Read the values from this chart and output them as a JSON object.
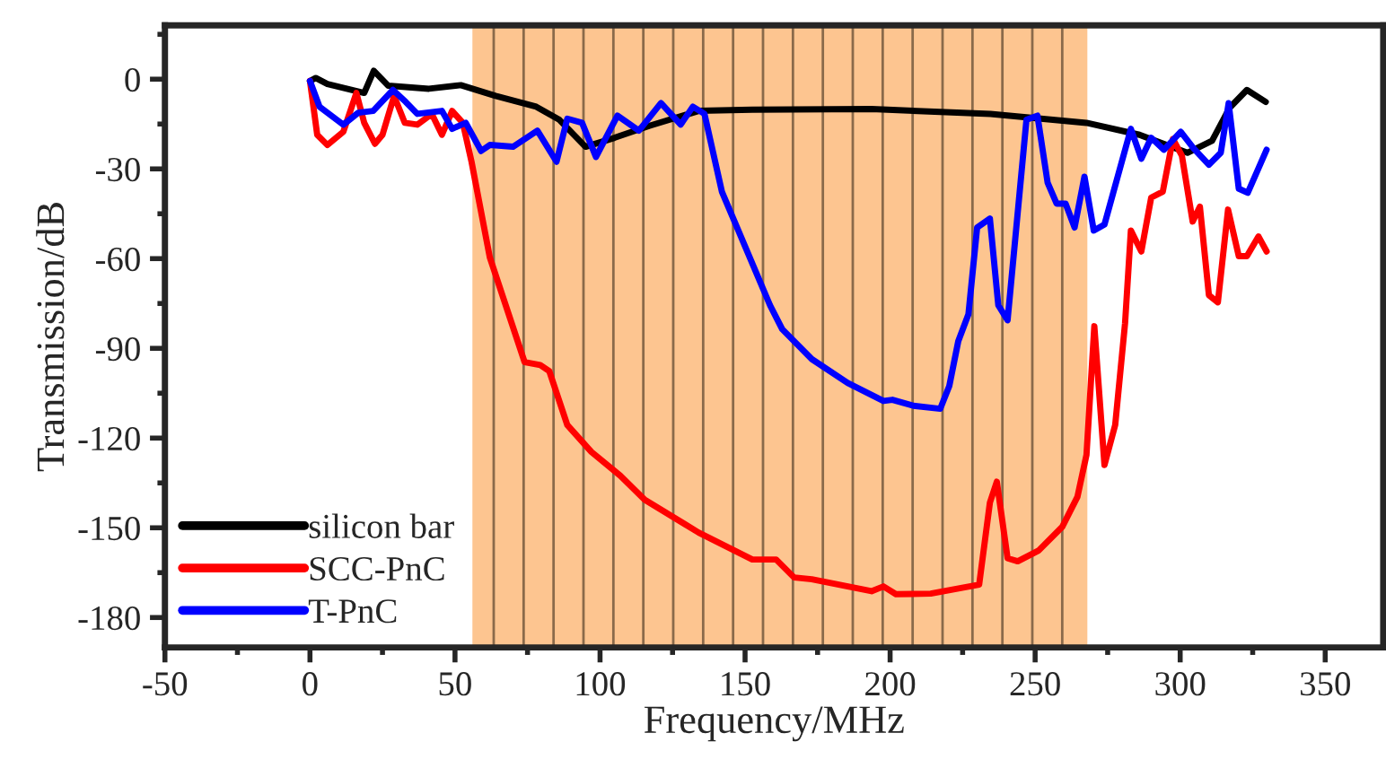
{
  "chart_data": {
    "type": "line",
    "xlabel": "Frequency/MHz",
    "ylabel": "Transmission/dB",
    "xlim": [
      -50,
      370
    ],
    "ylim": [
      -190,
      18
    ],
    "xticks": [
      -50,
      0,
      50,
      100,
      150,
      200,
      250,
      300,
      350
    ],
    "yticks": [
      -180,
      -150,
      -120,
      -90,
      -60,
      -30,
      0
    ],
    "grid": false,
    "legend": "bottom left",
    "line_style": "solid",
    "marker": "none",
    "bands": [
      {
        "axis": "x",
        "from": 56,
        "to": 268,
        "color": "#fdc590"
      }
    ],
    "series": [
      {
        "name": "silicon bar",
        "color": "#000000",
        "x": [
          0,
          2,
          6,
          18.7,
          22,
          27,
          41,
          52,
          64,
          78,
          86,
          95,
          105,
          117,
          134,
          152.5,
          193.6,
          234.6,
          267.7,
          286,
          302.5,
          311,
          317,
          323,
          329.5
        ],
        "values": [
          -0.6,
          0.4,
          -1.6,
          -4.6,
          2.8,
          -2.2,
          -3.2,
          -2,
          -5.6,
          -9.2,
          -13.6,
          -22.6,
          -19.6,
          -15.6,
          -10.6,
          -10.2,
          -10,
          -11.6,
          -14.6,
          -18.6,
          -24.6,
          -20.6,
          -9.6,
          -3.6,
          -7.6
        ]
      },
      {
        "name": "SCC-PnC",
        "color": "#ff0000",
        "x": [
          0,
          2.5,
          6,
          11.5,
          16,
          18.7,
          22.4,
          25,
          29,
          32.7,
          37,
          42,
          45.5,
          49,
          52.7,
          55.7,
          62,
          74,
          79.4,
          82.5,
          88.7,
          97,
          107,
          115.4,
          134,
          152.5,
          160.7,
          166.9,
          173,
          193.6,
          197.7,
          202,
          214,
          230.7,
          234.4,
          236.8,
          240.5,
          244,
          251.2,
          259.4,
          264.6,
          267.7,
          270.4,
          273.9,
          277.6,
          281,
          283,
          286.6,
          290,
          294,
          297.5,
          300.6,
          304.3,
          306.8,
          309.9,
          313,
          316.5,
          320.2,
          323,
          327,
          329.8
        ],
        "values": [
          -0.6,
          -18.6,
          -22,
          -17.6,
          -4.6,
          -14.6,
          -21.6,
          -18.6,
          -5.6,
          -14.6,
          -15.2,
          -11.6,
          -18.6,
          -10.6,
          -14.6,
          -27.6,
          -59.6,
          -94.6,
          -95.6,
          -97.6,
          -115.6,
          -124.6,
          -132.6,
          -140.6,
          -151.6,
          -160.6,
          -160.6,
          -166.6,
          -167.2,
          -171.2,
          -169.6,
          -172.2,
          -172,
          -169,
          -141.6,
          -134.6,
          -160.2,
          -161.2,
          -157.6,
          -149.6,
          -139.6,
          -125.6,
          -82.6,
          -129,
          -115.6,
          -81.6,
          -50.6,
          -57.6,
          -39.6,
          -37.6,
          -20,
          -25.6,
          -47.6,
          -42.6,
          -72.2,
          -74.6,
          -43.6,
          -59.2,
          -59.2,
          -52.6,
          -57.6
        ]
      },
      {
        "name": "T-PnC",
        "color": "#0000ff",
        "x": [
          0,
          3.3,
          11.5,
          16.7,
          21.8,
          28.6,
          33,
          37,
          45.5,
          49,
          53.7,
          59,
          62,
          70,
          78.4,
          85,
          88.7,
          93.8,
          98.6,
          106,
          113.4,
          121,
          127.8,
          132,
          136,
          142,
          158.6,
          162.8,
          173,
          185.4,
          197.7,
          200.8,
          208,
          217.3,
          220.4,
          223.5,
          227,
          230,
          234.4,
          237.3,
          240.5,
          247,
          250.8,
          254.3,
          257.4,
          260.5,
          263.6,
          267,
          270.2,
          273.9,
          283,
          286.6,
          290,
          294.4,
          300.2,
          304.7,
          309.9,
          314,
          316.7,
          320.2,
          323.3,
          329.8
        ],
        "values": [
          -0.6,
          -9.2,
          -15.2,
          -11.2,
          -10.6,
          -3.6,
          -7.6,
          -11.6,
          -10.6,
          -16.6,
          -14.6,
          -24,
          -22,
          -22.6,
          -17.2,
          -27.6,
          -13.2,
          -14.6,
          -26,
          -12.2,
          -17.2,
          -8,
          -15.2,
          -9.2,
          -11.6,
          -37.6,
          -75.6,
          -83.6,
          -93.6,
          -101.6,
          -107.6,
          -107.2,
          -109.2,
          -110.2,
          -102.6,
          -87.6,
          -78.6,
          -49.6,
          -46.6,
          -75.6,
          -80.6,
          -13.6,
          -12.2,
          -34.6,
          -41.6,
          -41.6,
          -49.6,
          -32.6,
          -50.6,
          -48.6,
          -16.6,
          -26.6,
          -19.6,
          -23.6,
          -17.6,
          -23.2,
          -28.6,
          -24.6,
          -8,
          -36.6,
          -38,
          -23.6
        ]
      }
    ]
  }
}
